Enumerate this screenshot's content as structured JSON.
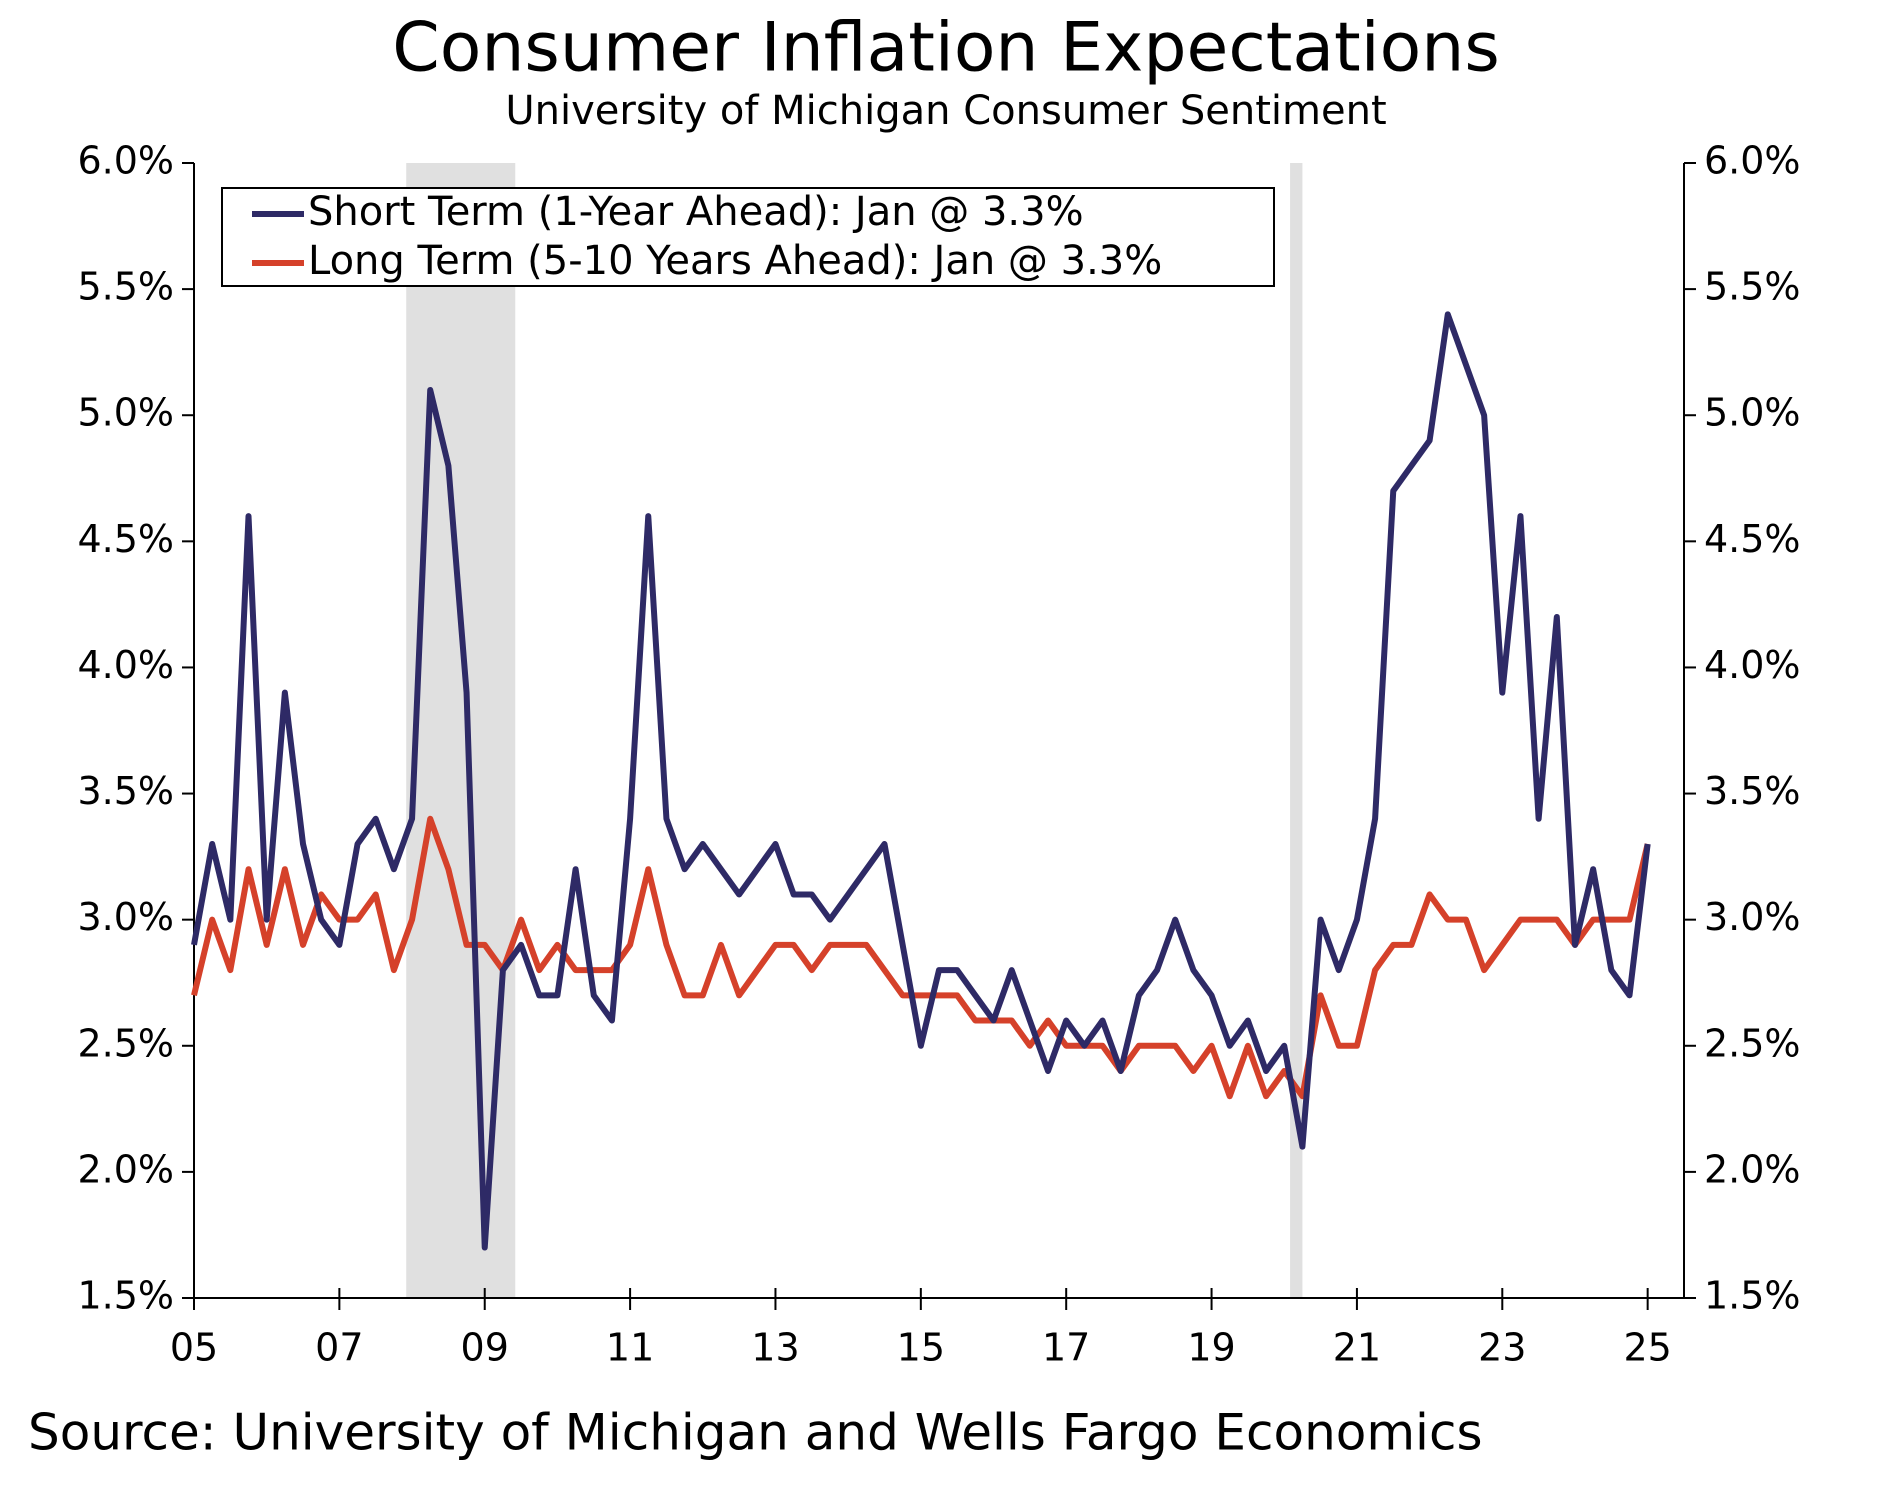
{
  "chart_data": {
    "type": "line",
    "title": "Consumer Inflation Expectations",
    "subtitle": "University of Michigan Consumer Sentiment",
    "source": "Source: University of Michigan and Wells Fargo Economics",
    "x": [
      2005,
      2005.25,
      2005.5,
      2005.75,
      2006,
      2006.25,
      2006.5,
      2006.75,
      2007,
      2007.25,
      2007.5,
      2007.75,
      2008,
      2008.25,
      2008.5,
      2008.75,
      2009,
      2009.25,
      2009.5,
      2009.75,
      2010,
      2010.25,
      2010.5,
      2010.75,
      2011,
      2011.25,
      2011.5,
      2011.75,
      2012,
      2012.25,
      2012.5,
      2012.75,
      2013,
      2013.25,
      2013.5,
      2013.75,
      2014,
      2014.25,
      2014.5,
      2014.75,
      2015,
      2015.25,
      2015.5,
      2015.75,
      2016,
      2016.25,
      2016.5,
      2016.75,
      2017,
      2017.25,
      2017.5,
      2017.75,
      2018,
      2018.25,
      2018.5,
      2018.75,
      2019,
      2019.25,
      2019.5,
      2019.75,
      2020,
      2020.25,
      2020.5,
      2020.75,
      2021,
      2021.25,
      2021.5,
      2021.75,
      2022,
      2022.25,
      2022.5,
      2022.75,
      2023,
      2023.25,
      2023.5,
      2023.75,
      2024,
      2024.25,
      2024.5,
      2024.75,
      2025
    ],
    "series": [
      {
        "name": "Short Term (1-Year Ahead): Jan @ 3.3%",
        "color": "#2e2a66",
        "values": [
          2.9,
          3.3,
          3.0,
          4.6,
          3.0,
          3.9,
          3.3,
          3.0,
          2.9,
          3.3,
          3.4,
          3.2,
          3.4,
          5.1,
          4.8,
          3.9,
          1.7,
          2.8,
          2.9,
          2.7,
          2.7,
          3.2,
          2.7,
          2.6,
          3.4,
          4.6,
          3.4,
          3.2,
          3.3,
          3.2,
          3.1,
          3.2,
          3.3,
          3.1,
          3.1,
          3.0,
          3.1,
          3.2,
          3.3,
          2.9,
          2.5,
          2.8,
          2.8,
          2.7,
          2.6,
          2.8,
          2.6,
          2.4,
          2.6,
          2.5,
          2.6,
          2.4,
          2.7,
          2.8,
          3.0,
          2.8,
          2.7,
          2.5,
          2.6,
          2.4,
          2.5,
          2.1,
          3.0,
          2.8,
          3.0,
          3.4,
          4.7,
          4.8,
          4.9,
          5.4,
          5.2,
          5.0,
          3.9,
          4.6,
          3.4,
          4.2,
          2.9,
          3.2,
          2.8,
          2.7,
          3.3
        ]
      },
      {
        "name": "Long Term (5-10 Years Ahead): Jan @ 3.3%",
        "color": "#d5412a",
        "values": [
          2.7,
          3.0,
          2.8,
          3.2,
          2.9,
          3.2,
          2.9,
          3.1,
          3.0,
          3.0,
          3.1,
          2.8,
          3.0,
          3.4,
          3.2,
          2.9,
          2.9,
          2.8,
          3.0,
          2.8,
          2.9,
          2.8,
          2.8,
          2.8,
          2.9,
          3.2,
          2.9,
          2.7,
          2.7,
          2.9,
          2.7,
          2.8,
          2.9,
          2.9,
          2.8,
          2.9,
          2.9,
          2.9,
          2.8,
          2.7,
          2.7,
          2.7,
          2.7,
          2.6,
          2.6,
          2.6,
          2.5,
          2.6,
          2.5,
          2.5,
          2.5,
          2.4,
          2.5,
          2.5,
          2.5,
          2.4,
          2.5,
          2.3,
          2.5,
          2.3,
          2.4,
          2.3,
          2.7,
          2.5,
          2.5,
          2.8,
          2.9,
          2.9,
          3.1,
          3.0,
          3.0,
          2.8,
          2.9,
          3.0,
          3.0,
          3.0,
          2.9,
          3.0,
          3.0,
          3.0,
          3.3
        ]
      }
    ],
    "shaded_periods": [
      [
        2007.92,
        2009.42
      ],
      [
        2020.08,
        2020.25
      ]
    ],
    "xlim": [
      2005,
      2025.5
    ],
    "xticks": [
      {
        "value": 2005,
        "label": "05"
      },
      {
        "value": 2007,
        "label": "07"
      },
      {
        "value": 2009,
        "label": "09"
      },
      {
        "value": 2011,
        "label": "11"
      },
      {
        "value": 2013,
        "label": "13"
      },
      {
        "value": 2015,
        "label": "15"
      },
      {
        "value": 2017,
        "label": "17"
      },
      {
        "value": 2019,
        "label": "19"
      },
      {
        "value": 2021,
        "label": "21"
      },
      {
        "value": 2023,
        "label": "23"
      },
      {
        "value": 2025,
        "label": "25"
      }
    ],
    "ylim": [
      1.5,
      6.0
    ],
    "yticks": [
      {
        "value": 1.5,
        "label": "1.5%"
      },
      {
        "value": 2.0,
        "label": "2.0%"
      },
      {
        "value": 2.5,
        "label": "2.5%"
      },
      {
        "value": 3.0,
        "label": "3.0%"
      },
      {
        "value": 3.5,
        "label": "3.5%"
      },
      {
        "value": 4.0,
        "label": "4.0%"
      },
      {
        "value": 4.5,
        "label": "4.5%"
      },
      {
        "value": 5.0,
        "label": "5.0%"
      },
      {
        "value": 5.5,
        "label": "5.5%"
      },
      {
        "value": 6.0,
        "label": "6.0%"
      }
    ],
    "legend": "upper left",
    "grid": false
  }
}
